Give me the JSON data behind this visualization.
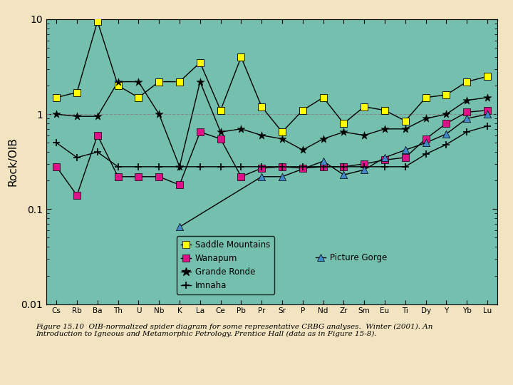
{
  "elements": [
    "Cs",
    "Rb",
    "Ba",
    "Th",
    "U",
    "Nb",
    "K",
    "La",
    "Ce",
    "Pb",
    "Pr",
    "Sr",
    "P",
    "Nd",
    "Zr",
    "Sm",
    "Eu",
    "Ti",
    "Dy",
    "Y",
    "Yb",
    "Lu"
  ],
  "saddle_mountains": [
    1.5,
    1.7,
    9.5,
    2.0,
    1.5,
    2.2,
    2.2,
    3.5,
    1.1,
    4.0,
    1.2,
    0.65,
    1.1,
    1.5,
    0.8,
    1.2,
    1.1,
    0.85,
    1.5,
    1.6,
    2.2,
    2.5
  ],
  "wanapum": [
    0.28,
    0.14,
    0.6,
    0.22,
    0.22,
    0.22,
    0.18,
    0.65,
    0.55,
    0.22,
    0.27,
    0.28,
    0.27,
    0.28,
    0.28,
    0.3,
    0.33,
    0.35,
    0.55,
    0.8,
    1.05,
    1.1
  ],
  "grande_ronde": [
    1.0,
    0.95,
    0.95,
    2.2,
    2.2,
    1.0,
    0.28,
    2.2,
    0.65,
    0.7,
    0.6,
    0.55,
    0.42,
    0.55,
    0.65,
    0.6,
    0.7,
    0.7,
    0.9,
    1.0,
    1.4,
    1.5
  ],
  "imnaha": [
    0.5,
    0.35,
    0.4,
    0.28,
    0.28,
    0.28,
    0.28,
    0.28,
    0.28,
    0.28,
    0.28,
    0.28,
    0.28,
    0.28,
    0.28,
    0.28,
    0.28,
    0.28,
    0.38,
    0.48,
    0.65,
    0.75
  ],
  "picture_gorge": [
    null,
    null,
    null,
    null,
    null,
    null,
    0.065,
    null,
    null,
    null,
    0.22,
    0.22,
    null,
    0.32,
    0.23,
    0.26,
    0.35,
    0.42,
    0.5,
    0.62,
    0.9,
    1.0
  ],
  "bg_color": "#74bfad",
  "fig_bg_color": "#f2e4c0",
  "saddle_color": "#ffff00",
  "wanapum_color": "#dd1188",
  "grande_ronde_color": "#000000",
  "imnaha_color": "#000000",
  "picture_gorge_color": "#4488cc",
  "ylim_low": 0.01,
  "ylim_high": 10,
  "ylabel": "Rock/OIB",
  "caption": "Figure 15.10  OIB-normalized spider diagram for some representative CRBG analyses.  Winter (2001). An\nIntroduction to Igneous and Metamorphic Petrology. Prentice Hall (data as in Figure 15-8)."
}
